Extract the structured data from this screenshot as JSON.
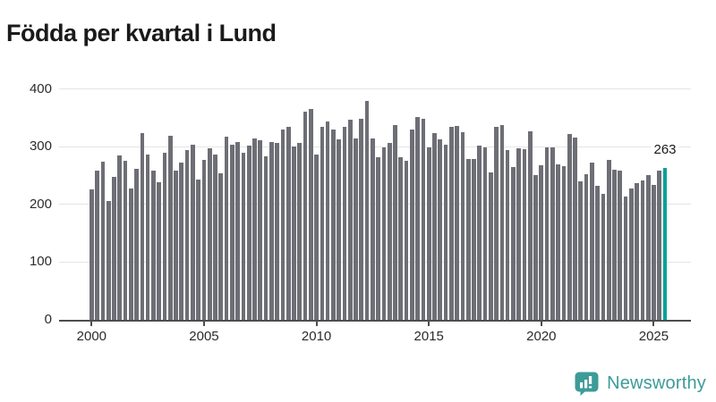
{
  "title": "Födda per kvartal i Lund",
  "highlight": {
    "value_label": "263"
  },
  "brand": {
    "name": "Newsworthy",
    "color": "#3d9b98",
    "icon": "bar-chart-speech-bubble-icon"
  },
  "chart_data": {
    "type": "bar",
    "title": "Födda per kvartal i Lund",
    "xlabel": "",
    "ylabel": "",
    "ylim": [
      0,
      400
    ],
    "grid": "horizontal",
    "bar_color": "#6e6e76",
    "highlight_color": "#00a29a",
    "y_ticks": [
      {
        "value": 0,
        "label": "0"
      },
      {
        "value": 100,
        "label": "100"
      },
      {
        "value": 200,
        "label": "200"
      },
      {
        "value": 300,
        "label": "300"
      },
      {
        "value": 400,
        "label": "400"
      }
    ],
    "x_ticks": [
      {
        "index": 0,
        "label": "2000"
      },
      {
        "index": 20,
        "label": "2005"
      },
      {
        "index": 40,
        "label": "2010"
      },
      {
        "index": 60,
        "label": "2015"
      },
      {
        "index": 80,
        "label": "2020"
      },
      {
        "index": 100,
        "label": "2025"
      }
    ],
    "categories": [
      "2000K1",
      "2000K2",
      "2000K3",
      "2000K4",
      "2001K1",
      "2001K2",
      "2001K3",
      "2001K4",
      "2002K1",
      "2002K2",
      "2002K3",
      "2002K4",
      "2003K1",
      "2003K2",
      "2003K3",
      "2003K4",
      "2004K1",
      "2004K2",
      "2004K3",
      "2004K4",
      "2005K1",
      "2005K2",
      "2005K3",
      "2005K4",
      "2006K1",
      "2006K2",
      "2006K3",
      "2006K4",
      "2007K1",
      "2007K2",
      "2007K3",
      "2007K4",
      "2008K1",
      "2008K2",
      "2008K3",
      "2008K4",
      "2009K1",
      "2009K2",
      "2009K3",
      "2009K4",
      "2010K1",
      "2010K2",
      "2010K3",
      "2010K4",
      "2011K1",
      "2011K2",
      "2011K3",
      "2011K4",
      "2012K1",
      "2012K2",
      "2012K3",
      "2012K4",
      "2013K1",
      "2013K2",
      "2013K3",
      "2013K4",
      "2014K1",
      "2014K2",
      "2014K3",
      "2014K4",
      "2015K1",
      "2015K2",
      "2015K3",
      "2015K4",
      "2016K1",
      "2016K2",
      "2016K3",
      "2016K4",
      "2017K1",
      "2017K2",
      "2017K3",
      "2017K4",
      "2018K1",
      "2018K2",
      "2018K3",
      "2018K4",
      "2019K1",
      "2019K2",
      "2019K3",
      "2019K4",
      "2020K1",
      "2020K2",
      "2020K3",
      "2020K4",
      "2021K1",
      "2021K2",
      "2021K3",
      "2021K4",
      "2022K1",
      "2022K2",
      "2022K3",
      "2022K4",
      "2023K1",
      "2023K2",
      "2023K3",
      "2023K4",
      "2024K1",
      "2024K2",
      "2024K3",
      "2024K4",
      "2025K1",
      "2025K2",
      "2025K3"
    ],
    "values": [
      226,
      258,
      274,
      206,
      248,
      285,
      276,
      228,
      262,
      323,
      287,
      259,
      239,
      289,
      319,
      259,
      272,
      294,
      303,
      243,
      277,
      297,
      286,
      254,
      317,
      303,
      308,
      289,
      302,
      315,
      311,
      284,
      308,
      307,
      330,
      334,
      301,
      306,
      360,
      366,
      286,
      334,
      344,
      329,
      312,
      335,
      346,
      315,
      348,
      379,
      314,
      281,
      299,
      307,
      338,
      282,
      275,
      330,
      351,
      349,
      298,
      324,
      313,
      303,
      335,
      336,
      325,
      279,
      279,
      302,
      299,
      255,
      334,
      337,
      294,
      265,
      297,
      295,
      327,
      251,
      268,
      298,
      298,
      270,
      267,
      322,
      316,
      240,
      252,
      272,
      232,
      218,
      277,
      260,
      258,
      214,
      227,
      237,
      242,
      251,
      234,
      259,
      263
    ],
    "highlight_index": 102,
    "highlight_value_label": "263",
    "legend": "none"
  }
}
